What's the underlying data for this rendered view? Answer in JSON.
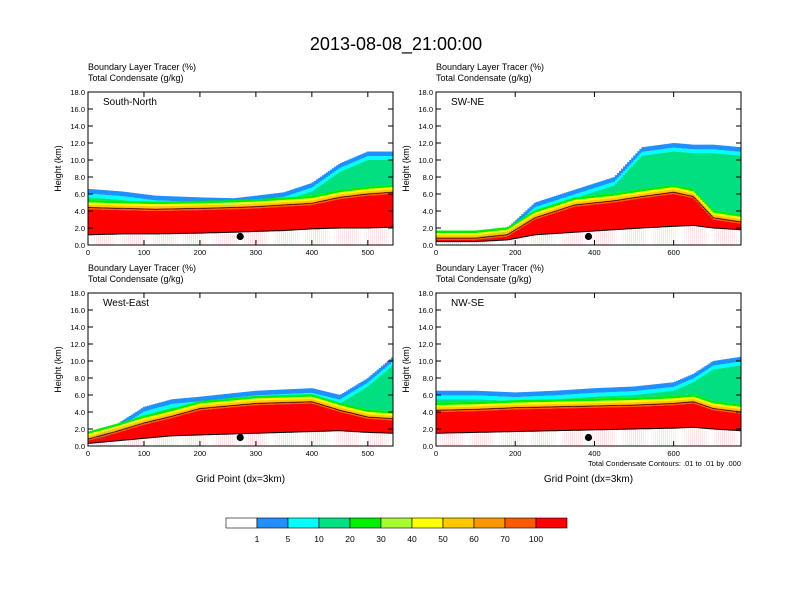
{
  "title": "2013-08-08_21:00:00",
  "panels": [
    {
      "id": "south-north",
      "label": "South-North",
      "header_line1": "Boundary Layer Tracer   (%)",
      "header_line2": "Total Condensate   (g/kg)",
      "ylabel": "Height (km)",
      "xlabel": "",
      "xlim": [
        0,
        545
      ],
      "ylim": [
        0,
        18
      ],
      "xticks": [
        "0",
        "100",
        "200",
        "300",
        "400",
        "500"
      ],
      "yticks": [
        "0.0",
        "2.0",
        "4.0",
        "6.0",
        "8.0",
        "10.0",
        "12.0",
        "14.0",
        "16.0",
        "18.0"
      ],
      "marker_x": 272,
      "footnote": ""
    },
    {
      "id": "sw-ne",
      "label": "SW-NE",
      "header_line1": "Boundary Layer Tracer   (%)",
      "header_line2": "Total Condensate   (g/kg)",
      "ylabel": "Height (km)",
      "xlabel": "",
      "xlim": [
        0,
        770
      ],
      "ylim": [
        0,
        18
      ],
      "xticks": [
        "0",
        "200",
        "400",
        "600"
      ],
      "yticks": [
        "0.0",
        "2.0",
        "4.0",
        "6.0",
        "8.0",
        "10.0",
        "12.0",
        "14.0",
        "16.0",
        "18.0"
      ],
      "marker_x": 385,
      "footnote": ""
    },
    {
      "id": "west-east",
      "label": "West-East",
      "header_line1": "Boundary Layer Tracer   (%)",
      "header_line2": "Total Condensate   (g/kg)",
      "ylabel": "Height (km)",
      "xlabel": "Grid Point (dx=3km)",
      "xlim": [
        0,
        545
      ],
      "ylim": [
        0,
        18
      ],
      "xticks": [
        "0",
        "100",
        "200",
        "300",
        "400",
        "500"
      ],
      "yticks": [
        "0.0",
        "2.0",
        "4.0",
        "6.0",
        "8.0",
        "10.0",
        "12.0",
        "14.0",
        "16.0",
        "18.0"
      ],
      "marker_x": 272,
      "footnote": ""
    },
    {
      "id": "nw-se",
      "label": "NW-SE",
      "header_line1": "Boundary Layer Tracer   (%)",
      "header_line2": "Total Condensate   (g/kg)",
      "ylabel": "Height (km)",
      "xlabel": "Grid Point (dx=3km)",
      "xlim": [
        0,
        770
      ],
      "ylim": [
        0,
        18
      ],
      "xticks": [
        "0",
        "200",
        "400",
        "600"
      ],
      "yticks": [
        "0.0",
        "2.0",
        "4.0",
        "6.0",
        "8.0",
        "10.0",
        "12.0",
        "14.0",
        "16.0",
        "18.0"
      ],
      "marker_x": 385,
      "footnote": "Total Condensate Contours: .01 to .01 by .000"
    }
  ],
  "colorbar": {
    "labels": [
      "1",
      "5",
      "10",
      "20",
      "30",
      "40",
      "50",
      "60",
      "70",
      "100"
    ],
    "colors": [
      "#ffffff",
      "#1e90ff",
      "#00ffff",
      "#00e080",
      "#00ee00",
      "#a8ff30",
      "#ffff00",
      "#ffc800",
      "#ff9600",
      "#ff5a00",
      "#ff0000"
    ]
  },
  "chart_data": [
    {
      "type": "heatmap",
      "panel": "South-North",
      "title": "Boundary Layer Tracer (%) / Total Condensate (g/kg)",
      "xlabel": "",
      "ylabel": "Height (km)",
      "xlim": [
        0,
        545
      ],
      "ylim": [
        0,
        18
      ],
      "profile_x": [
        0,
        60,
        120,
        200,
        260,
        300,
        350,
        400,
        450,
        500,
        545
      ],
      "terrain_km": [
        1.2,
        1.3,
        1.3,
        1.4,
        1.5,
        1.6,
        1.7,
        1.9,
        2.0,
        2.0,
        2.1
      ],
      "tracer_top_km": [
        4.2,
        4.1,
        4.0,
        4.1,
        4.2,
        4.3,
        4.5,
        4.7,
        5.4,
        5.8,
        6.0
      ],
      "tracer_extent_km": [
        6.6,
        6.3,
        5.8,
        5.6,
        5.5,
        5.8,
        6.2,
        7.3,
        9.6,
        11.0,
        11.0
      ],
      "marker_x": 272,
      "marker_km": 1.0
    },
    {
      "type": "heatmap",
      "panel": "SW-NE",
      "title": "Boundary Layer Tracer (%) / Total Condensate (g/kg)",
      "xlabel": "",
      "ylabel": "Height (km)",
      "xlim": [
        0,
        770
      ],
      "ylim": [
        0,
        18
      ],
      "profile_x": [
        0,
        100,
        180,
        250,
        350,
        450,
        520,
        600,
        650,
        700,
        770
      ],
      "terrain_km": [
        0.4,
        0.4,
        0.6,
        1.2,
        1.5,
        1.8,
        2.0,
        2.2,
        2.3,
        2.0,
        1.8
      ],
      "tracer_top_km": [
        0.6,
        0.6,
        1.0,
        3.0,
        4.5,
        5.0,
        5.5,
        6.0,
        5.5,
        3.0,
        2.5
      ],
      "tracer_extent_km": [
        0.8,
        0.8,
        2.0,
        5.0,
        6.5,
        8.0,
        11.5,
        12.0,
        11.8,
        11.8,
        11.5
      ],
      "marker_x": 385,
      "marker_km": 1.0
    },
    {
      "type": "heatmap",
      "panel": "West-East",
      "title": "Boundary Layer Tracer (%) / Total Condensate (g/kg)",
      "xlabel": "Grid Point (dx=3km)",
      "ylabel": "Height (km)",
      "xlim": [
        0,
        545
      ],
      "ylim": [
        0,
        18
      ],
      "profile_x": [
        0,
        50,
        100,
        150,
        200,
        300,
        400,
        450,
        500,
        545
      ],
      "terrain_km": [
        0.3,
        0.6,
        0.9,
        1.2,
        1.3,
        1.5,
        1.7,
        1.8,
        1.6,
        1.5
      ],
      "tracer_top_km": [
        0.6,
        1.5,
        2.5,
        3.3,
        4.2,
        4.8,
        5.0,
        4.0,
        3.2,
        3.0
      ],
      "tracer_extent_km": [
        0.8,
        2.5,
        4.6,
        5.5,
        5.8,
        6.5,
        6.8,
        6.0,
        8.0,
        10.5
      ],
      "marker_x": 272,
      "marker_km": 1.0
    },
    {
      "type": "heatmap",
      "panel": "NW-SE",
      "title": "Boundary Layer Tracer (%) / Total Condensate (g/kg)",
      "xlabel": "Grid Point (dx=3km)",
      "ylabel": "Height (km)",
      "xlim": [
        0,
        770
      ],
      "ylim": [
        0,
        18
      ],
      "profile_x": [
        0,
        100,
        200,
        300,
        400,
        500,
        600,
        650,
        700,
        770
      ],
      "terrain_km": [
        1.5,
        1.6,
        1.7,
        1.8,
        1.9,
        2.0,
        2.1,
        2.2,
        2.0,
        1.8
      ],
      "tracer_top_km": [
        4.0,
        4.1,
        4.3,
        4.4,
        4.5,
        4.6,
        4.8,
        5.0,
        4.2,
        3.8
      ],
      "tracer_extent_km": [
        6.5,
        6.5,
        6.3,
        6.5,
        6.8,
        7.0,
        7.5,
        8.5,
        10.0,
        10.5
      ],
      "marker_x": 385,
      "marker_km": 1.0,
      "footnote": "Total Condensate Contours: .01 to .01 by .000"
    }
  ]
}
